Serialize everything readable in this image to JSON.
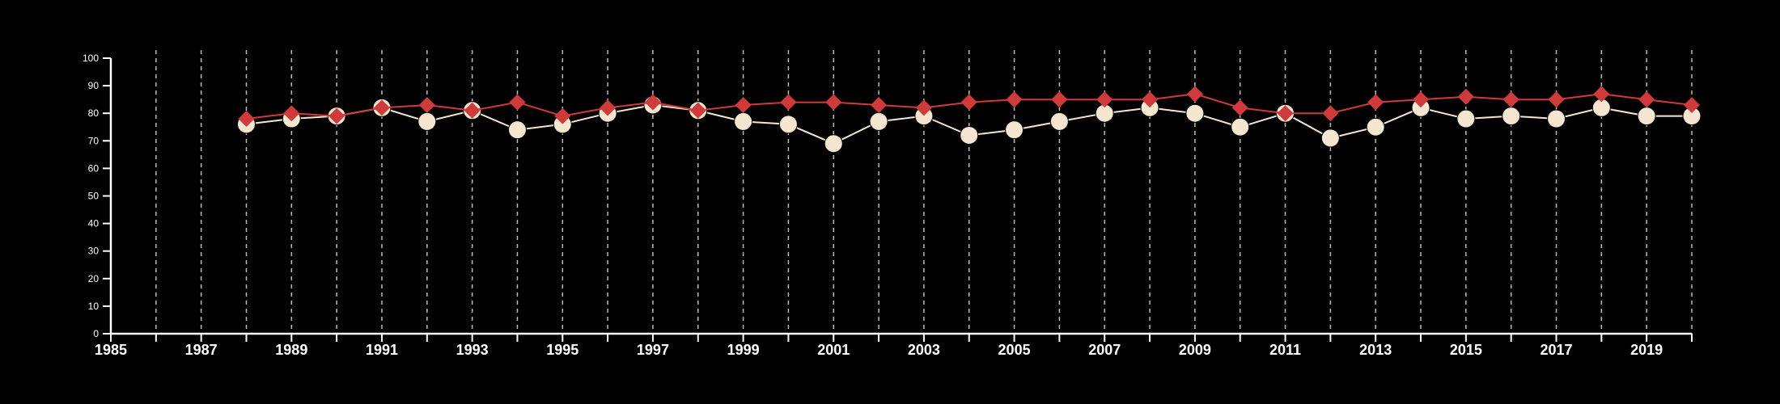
{
  "colors": {
    "background": "#000000",
    "axis": "#ffffff",
    "grid": "#bbbbbb",
    "series_white": "#f5e6d0",
    "series_red": "#d03a3a"
  },
  "chart_data": {
    "type": "line",
    "title": "",
    "xlabel": "",
    "ylabel": "",
    "xlim": [
      1985,
      2020
    ],
    "ylim": [
      0,
      100
    ],
    "x_ticks": [
      1985,
      1987,
      1989,
      1991,
      1993,
      1995,
      1997,
      1999,
      2001,
      2003,
      2005,
      2007,
      2009,
      2011,
      2013,
      2015,
      2017,
      2019
    ],
    "x_tick_labels": [
      "1985",
      "1987",
      "1989",
      "1991",
      "1993",
      "1995",
      "1997",
      "1999",
      "2001",
      "2003",
      "2005",
      "2007",
      "2009",
      "2011",
      "2013",
      "2015",
      "2017",
      "2019"
    ],
    "y_ticks": [
      0,
      10,
      20,
      30,
      40,
      50,
      60,
      70,
      80,
      90,
      100
    ],
    "y_tick_labels": [
      "0",
      "10",
      "20",
      "30",
      "40",
      "50",
      "60",
      "70",
      "80",
      "90",
      "100"
    ],
    "grid": "vertical dashed at every year",
    "legend": "none",
    "x": [
      1988,
      1989,
      1990,
      1991,
      1992,
      1993,
      1994,
      1995,
      1996,
      1997,
      1998,
      1999,
      2000,
      2001,
      2002,
      2003,
      2004,
      2005,
      2006,
      2007,
      2008,
      2009,
      2010,
      2011,
      2012,
      2013,
      2014,
      2015,
      2016,
      2017,
      2018,
      2019,
      2020
    ],
    "series": [
      {
        "marker": "circle",
        "color": "#f5e6d0",
        "values": [
          76,
          78,
          79,
          82,
          77,
          81,
          74,
          76,
          80,
          83,
          81,
          77,
          76,
          69,
          77,
          79,
          72,
          74,
          77,
          80,
          82,
          80,
          75,
          80,
          71,
          75,
          82,
          78,
          79,
          78,
          82,
          79,
          79
        ]
      },
      {
        "marker": "diamond",
        "color": "#d03a3a",
        "values": [
          78,
          80,
          79,
          82,
          83,
          81,
          84,
          79,
          82,
          84,
          81,
          83,
          84,
          84,
          83,
          82,
          84,
          85,
          85,
          85,
          85,
          87,
          82,
          80,
          80,
          84,
          85,
          86,
          85,
          85,
          87,
          85,
          83
        ]
      }
    ]
  }
}
